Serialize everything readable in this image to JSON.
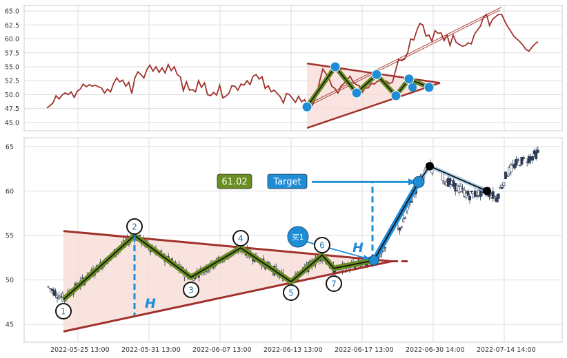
{
  "chart_data": [
    {
      "type": "line",
      "panel": "overview",
      "ylim": [
        43.5,
        66
      ],
      "yticks": [
        "45.0",
        "47.5",
        "50.0",
        "52.5",
        "55.0",
        "57.5",
        "60.0",
        "62.5",
        "65.0"
      ],
      "yvalues": [
        45.0,
        47.5,
        50.0,
        52.5,
        55.0,
        57.5,
        60.0,
        62.5,
        65.0
      ],
      "grid": true,
      "colors": {
        "price": "#a0302a",
        "pattern": "#6b8e23",
        "marker": "#1f8dd6",
        "trend": "#a0302a",
        "fill": "#f7d9d4"
      },
      "price_series": [
        47.6,
        48,
        48.5,
        49.8,
        49.2,
        49.9,
        50.3,
        50,
        50.5,
        49.5,
        50.6,
        51,
        51.9,
        51.4,
        51.8,
        51.5,
        51.7,
        51.4,
        51.2,
        50.3,
        51,
        50.5,
        52,
        53,
        52.3,
        52.6,
        51.5,
        52.2,
        50.2,
        53,
        54.1,
        53.6,
        53,
        54.5,
        55.3,
        54.2,
        55,
        54,
        54.8,
        53.9,
        55.4,
        54.3,
        55,
        53.6,
        53.2,
        50.7,
        52.3,
        50.8,
        50.9,
        50.5,
        52.5,
        51.3,
        52.1,
        50,
        49.8,
        50.4,
        49.9,
        51.7,
        49.4,
        49.7,
        50.2,
        51.6,
        51.5,
        50.8,
        51.9,
        51.7,
        52.5,
        51.8,
        53.3,
        53.6,
        52.8,
        53.2,
        51.1,
        51.6,
        50.5,
        50.8,
        50.2,
        49.6,
        48.5,
        50.2,
        50,
        49.3,
        48.6,
        49.7,
        48.7,
        49.1,
        47.6,
        47.5,
        48.6,
        50,
        52.5,
        54.6,
        53.8,
        53,
        51.5,
        51.1,
        50.3,
        51.5,
        52,
        52.6,
        53.3,
        52.3,
        51.8,
        51.6,
        50.4,
        51.2,
        51.2,
        52,
        51.9,
        52.4,
        52.5,
        52.3,
        52.4,
        52,
        52.2,
        54.3,
        56.3,
        56.1,
        56.4,
        57.5,
        60,
        59.8,
        61.5,
        62.8,
        62.5,
        60.5,
        60.7,
        59.6,
        61.5,
        61,
        61.1,
        59.7,
        60.7,
        58.8,
        60.7,
        59.4,
        59,
        58.7,
        58.8,
        59.3,
        59.1,
        60.8,
        61.6,
        62.3,
        63.9,
        64.4,
        62.4,
        63.5,
        64,
        64.4,
        64.4,
        63.2,
        62.2,
        61.4,
        60.5,
        60,
        59.5,
        58.9,
        58.1,
        57.8,
        58.5,
        59.1,
        59.5
      ],
      "pattern_points": [
        [
          47.8,
          0
        ],
        [
          55,
          1
        ],
        [
          50.3,
          2
        ],
        [
          53.6,
          3
        ],
        [
          49.8,
          4
        ],
        [
          52.8,
          5
        ],
        [
          51.3,
          6
        ]
      ],
      "overlay_pattern_markers": [
        47.8,
        55,
        50.3,
        53.6,
        49.8,
        52.8,
        51.3
      ]
    },
    {
      "type": "candlestick",
      "panel": "main",
      "ylim": [
        43,
        66
      ],
      "yticks": [
        "45",
        "50",
        "55",
        "60",
        "65"
      ],
      "yvalues": [
        45,
        50,
        55,
        60,
        65
      ],
      "xticks": [
        "2022-05-25 13:00",
        "2022-05-31 13:00",
        "2022-06-07 13:00",
        "2022-06-13 13:00",
        "2022-06-17 13:00",
        "2022-06-30 14:00",
        "2022-07-14 14:00"
      ],
      "grid": true,
      "pattern_labels": [
        "1",
        "2",
        "3",
        "4",
        "5",
        "6",
        "7"
      ],
      "pattern_values": [
        47.8,
        55,
        50.3,
        53.6,
        49.8,
        52.8,
        51.3
      ],
      "breakout_value": 52.2,
      "upper_line": [
        55.5,
        52.1
      ],
      "lower_line": [
        44.2,
        52.1
      ],
      "height_label": "H",
      "price_tag": "61.02",
      "target_label": "Target",
      "target_value": 61.02,
      "buy_label": "买1",
      "post_breakout_points": [
        52.2,
        61.02,
        62.8,
        60.0
      ],
      "peak_low_markers": [
        62.8,
        60.0
      ],
      "colors": {
        "up": "#ffffff",
        "down": "#2d3a55",
        "pattern": "#6b8e23",
        "highlight": "#1f8dd6",
        "price_tag_bg": "#6b8e23",
        "target_bg": "#1f8dd6"
      }
    }
  ]
}
